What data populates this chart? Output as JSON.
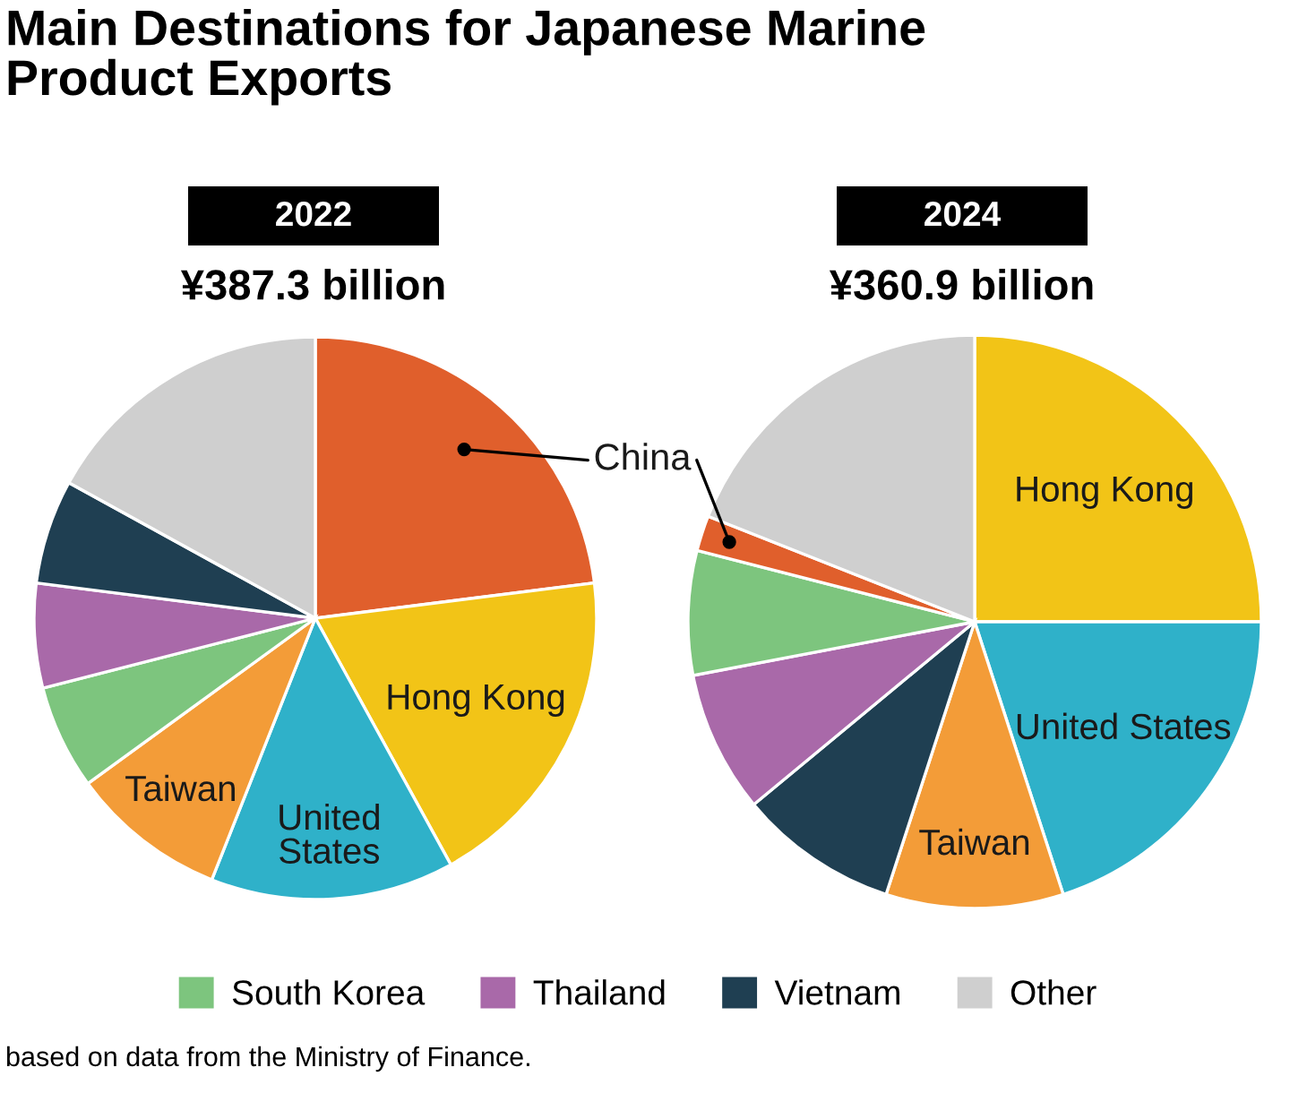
{
  "chart_data": [
    {
      "type": "pie",
      "title": "2022",
      "subtitle": "¥387.3 billion",
      "categories": [
        null,
        null,
        null,
        null,
        "South Korea",
        "Thailand",
        "Vietnam",
        "Other"
      ],
      "values": [
        23,
        19,
        14,
        9,
        6,
        6,
        6,
        17
      ],
      "colors": [
        "#e05f2c",
        "#f2c417",
        "#2fb1c9",
        "#f39c38",
        "#7dc57e",
        "#a969a9",
        "#1f3f52",
        "#cfcfcf"
      ],
      "value_labels": [
        "China",
        "Hong Kong",
        "United States",
        "Taiwan",
        null,
        null,
        null,
        null
      ],
      "legend": "bottom",
      "annotations": [
        "Main Destinations for Japanese Marine Product Exports",
        "based on data from the Ministry of Finance."
      ]
    },
    {
      "type": "pie",
      "title": "2024",
      "subtitle": "¥360.9 billion",
      "categories": [
        null,
        null,
        null,
        null,
        null,
        null,
        null,
        null
      ],
      "values": [
        25,
        20,
        10,
        9,
        8,
        7,
        2,
        19
      ],
      "colors": [
        "#f2c417",
        "#2fb1c9",
        "#f39c38",
        "#1f3f52",
        "#a969a9",
        "#7dc57e",
        "#e05f2c",
        "#cfcfcf"
      ],
      "value_labels": [
        "Hong Kong",
        "United States",
        "Taiwan",
        null,
        null,
        null,
        null,
        null
      ]
    }
  ]
}
